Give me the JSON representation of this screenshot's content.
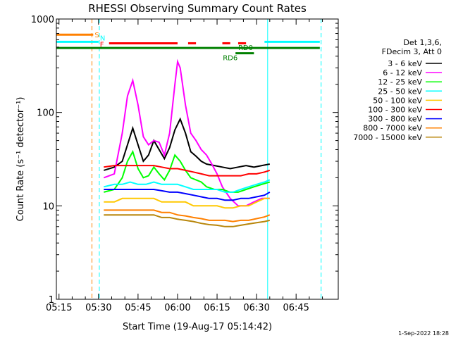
{
  "chart_data": {
    "type": "line",
    "title": "RHESSI Observing Summary Count Rates",
    "xlabel": "Start Time (19-Aug-17 05:14:42)",
    "ylabel": "Count Rate (s⁻¹ detector⁻¹)",
    "y_scale": "log",
    "ylim": [
      1,
      1000
    ],
    "xlim_minutes_after_0514": [
      0,
      107
    ],
    "y_ticks": [
      {
        "value": 1,
        "label": "1"
      },
      {
        "value": 10,
        "label": "10"
      },
      {
        "value": 100,
        "label": "100"
      },
      {
        "value": 1000,
        "label": "1000"
      }
    ],
    "x_ticks": [
      {
        "minute": 1,
        "label": "05:15"
      },
      {
        "minute": 16,
        "label": "05:30"
      },
      {
        "minute": 31,
        "label": "05:45"
      },
      {
        "minute": 46,
        "label": "06:00"
      },
      {
        "minute": 61,
        "label": "06:15"
      },
      {
        "minute": 76,
        "label": "06:30"
      },
      {
        "minute": 91,
        "label": "06:45"
      }
    ],
    "legend_header": [
      "Det 1,3,6,",
      "FDecim 3, Att 0"
    ],
    "legend_position": "right",
    "series": [
      {
        "name": "3 - 6 keV",
        "color": "#000000",
        "points": [
          [
            18,
            24
          ],
          [
            22,
            26
          ],
          [
            25,
            30
          ],
          [
            27,
            45
          ],
          [
            29,
            68
          ],
          [
            31,
            45
          ],
          [
            33,
            30
          ],
          [
            35,
            35
          ],
          [
            37,
            50
          ],
          [
            39,
            40
          ],
          [
            41,
            32
          ],
          [
            43,
            42
          ],
          [
            45,
            65
          ],
          [
            47,
            85
          ],
          [
            49,
            60
          ],
          [
            51,
            38
          ],
          [
            53,
            34
          ],
          [
            55,
            30
          ],
          [
            57,
            28
          ],
          [
            60,
            27
          ],
          [
            63,
            26
          ],
          [
            66,
            25
          ],
          [
            69,
            26
          ],
          [
            72,
            27
          ],
          [
            75,
            26
          ],
          [
            78,
            27
          ],
          [
            81,
            28
          ]
        ]
      },
      {
        "name": "6 - 12 keV",
        "color": "#ff00ff",
        "points": [
          [
            18,
            20
          ],
          [
            22,
            22
          ],
          [
            25,
            60
          ],
          [
            27,
            150
          ],
          [
            29,
            220
          ],
          [
            31,
            120
          ],
          [
            33,
            55
          ],
          [
            35,
            45
          ],
          [
            37,
            50
          ],
          [
            39,
            48
          ],
          [
            41,
            35
          ],
          [
            43,
            60
          ],
          [
            45,
            200
          ],
          [
            46,
            350
          ],
          [
            47,
            300
          ],
          [
            49,
            120
          ],
          [
            51,
            60
          ],
          [
            53,
            50
          ],
          [
            55,
            40
          ],
          [
            57,
            35
          ],
          [
            59,
            28
          ],
          [
            61,
            22
          ],
          [
            63,
            16
          ],
          [
            66,
            12
          ],
          [
            69,
            10
          ],
          [
            72,
            10
          ],
          [
            75,
            11
          ],
          [
            78,
            12
          ],
          [
            81,
            12
          ]
        ]
      },
      {
        "name": "12 - 25 keV",
        "color": "#00ff00",
        "points": [
          [
            18,
            14
          ],
          [
            22,
            15
          ],
          [
            25,
            20
          ],
          [
            27,
            30
          ],
          [
            29,
            38
          ],
          [
            31,
            25
          ],
          [
            33,
            20
          ],
          [
            35,
            21
          ],
          [
            37,
            26
          ],
          [
            39,
            22
          ],
          [
            41,
            19
          ],
          [
            43,
            24
          ],
          [
            45,
            35
          ],
          [
            47,
            30
          ],
          [
            49,
            24
          ],
          [
            51,
            20
          ],
          [
            53,
            19
          ],
          [
            55,
            18
          ],
          [
            57,
            16
          ],
          [
            60,
            15
          ],
          [
            63,
            15
          ],
          [
            66,
            14
          ],
          [
            69,
            14
          ],
          [
            72,
            15
          ],
          [
            75,
            16
          ],
          [
            78,
            17
          ],
          [
            81,
            18
          ]
        ]
      },
      {
        "name": "25 - 50 keV",
        "color": "#00ffff",
        "points": [
          [
            18,
            16
          ],
          [
            22,
            17
          ],
          [
            25,
            17
          ],
          [
            28,
            18
          ],
          [
            31,
            17
          ],
          [
            34,
            17
          ],
          [
            37,
            18
          ],
          [
            40,
            17
          ],
          [
            43,
            17
          ],
          [
            46,
            17
          ],
          [
            49,
            16
          ],
          [
            52,
            15
          ],
          [
            55,
            15
          ],
          [
            58,
            15
          ],
          [
            61,
            15
          ],
          [
            64,
            14
          ],
          [
            67,
            14
          ],
          [
            70,
            15
          ],
          [
            73,
            16
          ],
          [
            76,
            17
          ],
          [
            79,
            18
          ],
          [
            81,
            19
          ]
        ]
      },
      {
        "name": "50 - 100 keV",
        "color": "#ffc800",
        "points": [
          [
            18,
            11
          ],
          [
            22,
            11
          ],
          [
            25,
            12
          ],
          [
            28,
            12
          ],
          [
            31,
            12
          ],
          [
            34,
            12
          ],
          [
            37,
            12
          ],
          [
            40,
            11
          ],
          [
            43,
            11
          ],
          [
            46,
            11
          ],
          [
            49,
            11
          ],
          [
            52,
            10
          ],
          [
            55,
            10
          ],
          [
            58,
            10
          ],
          [
            61,
            10
          ],
          [
            64,
            9.5
          ],
          [
            67,
            9.5
          ],
          [
            70,
            10
          ],
          [
            73,
            10
          ],
          [
            76,
            11
          ],
          [
            79,
            12
          ],
          [
            81,
            12
          ]
        ]
      },
      {
        "name": "100 - 300 keV",
        "color": "#ff0000",
        "points": [
          [
            18,
            26
          ],
          [
            22,
            27
          ],
          [
            25,
            27
          ],
          [
            28,
            27
          ],
          [
            31,
            27
          ],
          [
            34,
            27
          ],
          [
            37,
            27
          ],
          [
            40,
            26
          ],
          [
            43,
            25
          ],
          [
            46,
            25
          ],
          [
            49,
            24
          ],
          [
            52,
            23
          ],
          [
            55,
            22
          ],
          [
            58,
            21
          ],
          [
            61,
            21
          ],
          [
            64,
            21
          ],
          [
            67,
            21
          ],
          [
            70,
            21
          ],
          [
            73,
            22
          ],
          [
            76,
            22
          ],
          [
            79,
            23
          ],
          [
            81,
            24
          ]
        ]
      },
      {
        "name": "300 - 800 keV",
        "color": "#0000ff",
        "points": [
          [
            18,
            15
          ],
          [
            22,
            15
          ],
          [
            25,
            15
          ],
          [
            28,
            15
          ],
          [
            31,
            15
          ],
          [
            34,
            15
          ],
          [
            37,
            15
          ],
          [
            40,
            14.5
          ],
          [
            43,
            14
          ],
          [
            46,
            14
          ],
          [
            49,
            13.5
          ],
          [
            52,
            13
          ],
          [
            55,
            12.5
          ],
          [
            58,
            12
          ],
          [
            61,
            12
          ],
          [
            64,
            11.5
          ],
          [
            67,
            11.5
          ],
          [
            70,
            12
          ],
          [
            73,
            12
          ],
          [
            76,
            12.5
          ],
          [
            79,
            13
          ],
          [
            81,
            14
          ]
        ]
      },
      {
        "name": "800 - 7000 keV",
        "color": "#ff8000",
        "points": [
          [
            18,
            9
          ],
          [
            22,
            9
          ],
          [
            25,
            9
          ],
          [
            28,
            9
          ],
          [
            31,
            9
          ],
          [
            34,
            9
          ],
          [
            37,
            9
          ],
          [
            40,
            8.5
          ],
          [
            43,
            8.5
          ],
          [
            46,
            8
          ],
          [
            49,
            7.8
          ],
          [
            52,
            7.5
          ],
          [
            55,
            7.3
          ],
          [
            58,
            7
          ],
          [
            61,
            7
          ],
          [
            64,
            7
          ],
          [
            67,
            6.8
          ],
          [
            70,
            7
          ],
          [
            73,
            7
          ],
          [
            76,
            7.3
          ],
          [
            79,
            7.6
          ],
          [
            81,
            8
          ]
        ]
      },
      {
        "name": "7000 - 15000 keV",
        "color": "#b8860b",
        "points": [
          [
            18,
            8
          ],
          [
            22,
            8
          ],
          [
            25,
            8
          ],
          [
            28,
            8
          ],
          [
            31,
            8
          ],
          [
            34,
            8
          ],
          [
            37,
            8
          ],
          [
            40,
            7.5
          ],
          [
            43,
            7.5
          ],
          [
            46,
            7.2
          ],
          [
            49,
            7
          ],
          [
            52,
            6.8
          ],
          [
            55,
            6.5
          ],
          [
            58,
            6.3
          ],
          [
            61,
            6.2
          ],
          [
            64,
            6
          ],
          [
            67,
            6
          ],
          [
            70,
            6.2
          ],
          [
            73,
            6.4
          ],
          [
            76,
            6.6
          ],
          [
            79,
            6.8
          ],
          [
            81,
            7
          ]
        ]
      }
    ],
    "flags": [
      {
        "label": "S",
        "color": "#ff8000",
        "segments": [
          [
            0,
            14
          ]
        ],
        "y_value": 680
      },
      {
        "label": "N",
        "color": "#00ffff",
        "segments": [
          [
            0,
            16
          ],
          [
            79,
            100
          ]
        ],
        "y_value": 570
      },
      {
        "label": "F",
        "color": "#ff0000",
        "segments": [
          [
            20,
            46
          ],
          [
            50,
            53
          ],
          [
            63,
            66
          ],
          [
            69,
            72
          ]
        ],
        "y_value": 550
      },
      {
        "label": "RD0",
        "color": "#008000",
        "segments": [
          [
            0,
            100
          ]
        ],
        "y_value": 490
      },
      {
        "label": "RD6",
        "color": "#008000",
        "segments": [
          [
            68,
            75
          ]
        ],
        "y_value": 430
      }
    ],
    "vlines": [
      {
        "minute": 0,
        "color": "#00ffff",
        "style": "solid"
      },
      {
        "minute": 13.5,
        "color": "#ff8000",
        "style": "dashed"
      },
      {
        "minute": 16.3,
        "color": "#00ffff",
        "style": "dashed"
      },
      {
        "minute": 80.2,
        "color": "#00ffff",
        "style": "solid"
      },
      {
        "minute": 100.5,
        "color": "#00ffff",
        "style": "dashed"
      }
    ],
    "grid": false,
    "footer_date": "1-Sep-2022 18:28"
  }
}
